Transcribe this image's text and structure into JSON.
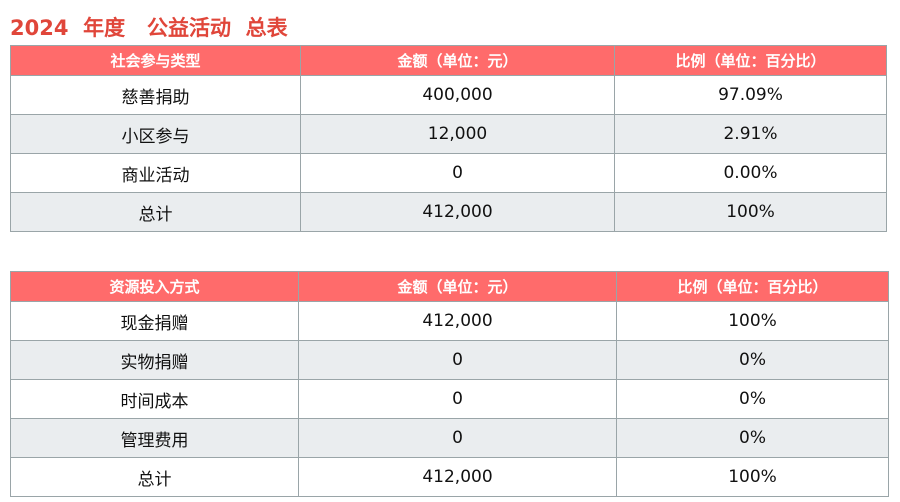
{
  "title": "2024  年度   公益活动  总表",
  "table1": {
    "headers": [
      "社会参与类型",
      "金额（单位：元）",
      "比例（单位：百分比）"
    ],
    "rows": [
      [
        "慈善捐助",
        "400,000",
        "97.09%"
      ],
      [
        "小区参与",
        "12,000",
        "2.91%"
      ],
      [
        "商业活动",
        "0",
        "0.00%"
      ],
      [
        "总计",
        "412,000",
        "100%"
      ]
    ]
  },
  "table2": {
    "headers": [
      "资源投入方式",
      "金额（单位：元）",
      "比例（单位：百分比）"
    ],
    "rows": [
      [
        "现金捐赠",
        "412,000",
        "100%"
      ],
      [
        "实物捐赠",
        "0",
        "0%"
      ],
      [
        "时间成本",
        "0",
        "0%"
      ],
      [
        "管理费用",
        "0",
        "0%"
      ],
      [
        "总计",
        "412,000",
        "100%"
      ]
    ]
  },
  "colors": {
    "title": "#e0463a",
    "header": "#ff6b6b",
    "alt_row": "#eaedef"
  }
}
